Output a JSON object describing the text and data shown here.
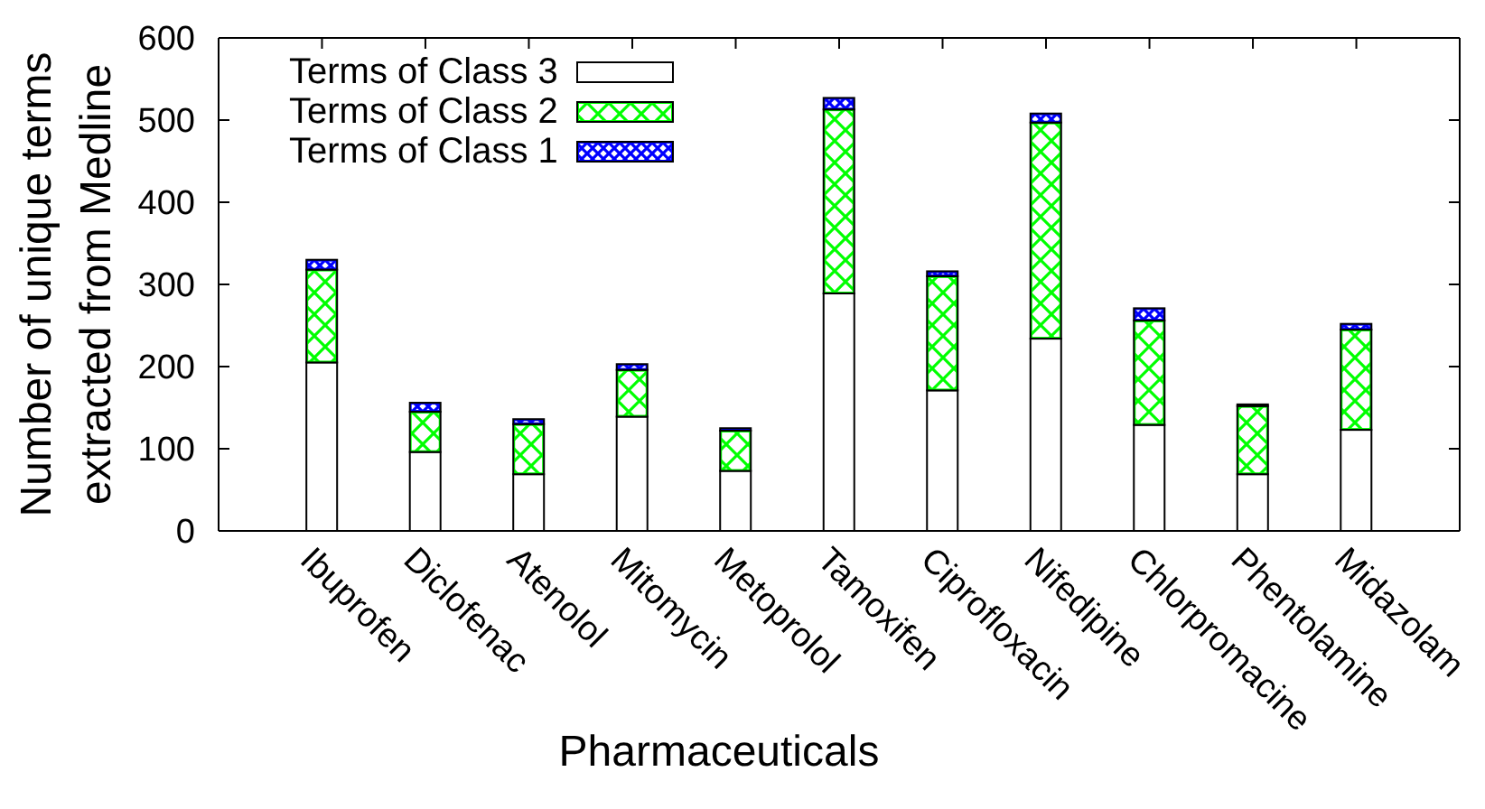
{
  "chart_data": {
    "type": "bar",
    "xlabel": "Pharmaceuticals",
    "ylabel": "Number of unique terms\nextracted from Medline",
    "categories": [
      "Ibuprofen",
      "Diclofenac",
      "Atenolol",
      "Mitomycin",
      "Metoprolol",
      "Tamoxifen",
      "Ciprofloxacin",
      "Nifedipine",
      "Chlorpromacine",
      "Phentolamine",
      "Midazolam"
    ],
    "series": [
      {
        "name": "Terms of Class 3",
        "color": "#ffffff",
        "values": [
          205,
          96,
          69,
          139,
          73,
          289,
          171,
          234,
          129,
          69,
          123
        ]
      },
      {
        "name": "Terms of Class 2",
        "color": "#00ff00",
        "values": [
          113,
          49,
          61,
          57,
          49,
          224,
          139,
          263,
          127,
          83,
          122
        ]
      },
      {
        "name": "Terms of Class 1",
        "color": "#0000ff",
        "values": [
          12,
          11,
          6,
          7,
          3,
          14,
          6,
          11,
          15,
          2,
          7
        ]
      }
    ],
    "stacked": true,
    "ylim": [
      0,
      600
    ],
    "yticks": [
      0,
      100,
      200,
      300,
      400,
      500,
      600
    ],
    "legend": "top left"
  }
}
